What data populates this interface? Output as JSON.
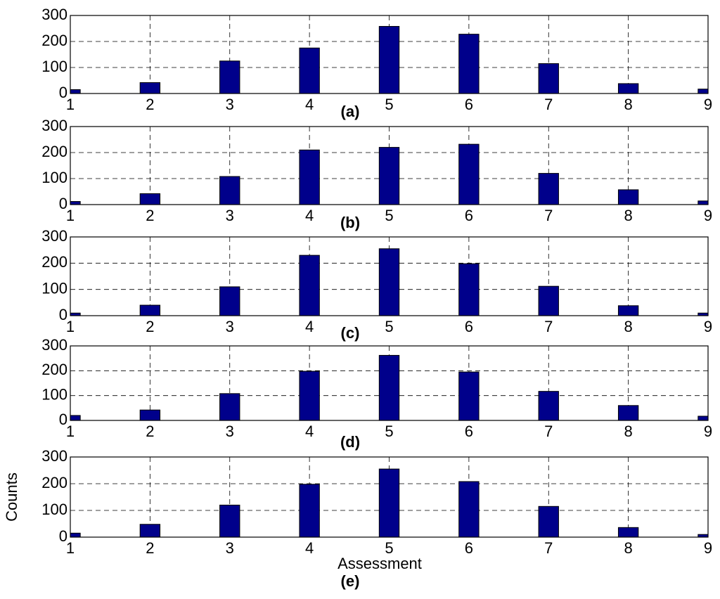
{
  "chart_data": [
    {
      "type": "bar",
      "label": "(a)",
      "x": [
        1,
        2,
        3,
        4,
        5,
        6,
        7,
        8,
        9
      ],
      "values": [
        15,
        42,
        125,
        175,
        258,
        228,
        115,
        38,
        17
      ],
      "color": "#00008b",
      "xlim": [
        1,
        9
      ],
      "ylim": [
        0,
        300
      ],
      "xticks": [
        1,
        2,
        3,
        4,
        5,
        6,
        7,
        8,
        9
      ],
      "yticks": [
        0,
        100,
        200,
        300
      ],
      "grid": true
    },
    {
      "type": "bar",
      "label": "(b)",
      "x": [
        1,
        2,
        3,
        4,
        5,
        6,
        7,
        8,
        9
      ],
      "values": [
        12,
        42,
        108,
        210,
        220,
        232,
        120,
        57,
        14
      ],
      "color": "#00008b",
      "xlim": [
        1,
        9
      ],
      "ylim": [
        0,
        300
      ],
      "xticks": [
        1,
        2,
        3,
        4,
        5,
        6,
        7,
        8,
        9
      ],
      "yticks": [
        0,
        100,
        200,
        300
      ],
      "grid": true
    },
    {
      "type": "bar",
      "label": "(c)",
      "x": [
        1,
        2,
        3,
        4,
        5,
        6,
        7,
        8,
        9
      ],
      "values": [
        10,
        40,
        110,
        230,
        255,
        198,
        112,
        38,
        10
      ],
      "color": "#00008b",
      "xlim": [
        1,
        9
      ],
      "ylim": [
        0,
        300
      ],
      "xticks": [
        1,
        2,
        3,
        4,
        5,
        6,
        7,
        8,
        9
      ],
      "yticks": [
        0,
        100,
        200,
        300
      ],
      "grid": true
    },
    {
      "type": "bar",
      "label": "(d)",
      "x": [
        1,
        2,
        3,
        4,
        5,
        6,
        7,
        8,
        9
      ],
      "values": [
        20,
        42,
        108,
        198,
        262,
        195,
        117,
        60,
        17
      ],
      "color": "#00008b",
      "xlim": [
        1,
        9
      ],
      "ylim": [
        0,
        300
      ],
      "xticks": [
        1,
        2,
        3,
        4,
        5,
        6,
        7,
        8,
        9
      ],
      "yticks": [
        0,
        100,
        200,
        300
      ],
      "grid": true
    },
    {
      "type": "bar",
      "label": "(e)",
      "x_label": "Assessment",
      "y_label": "Counts",
      "x": [
        1,
        2,
        3,
        4,
        5,
        6,
        7,
        8,
        9
      ],
      "values": [
        15,
        48,
        120,
        198,
        255,
        208,
        115,
        36,
        10
      ],
      "color": "#00008b",
      "xlim": [
        1,
        9
      ],
      "ylim": [
        0,
        300
      ],
      "xticks": [
        1,
        2,
        3,
        4,
        5,
        6,
        7,
        8,
        9
      ],
      "yticks": [
        0,
        100,
        200,
        300
      ],
      "grid": true
    }
  ]
}
